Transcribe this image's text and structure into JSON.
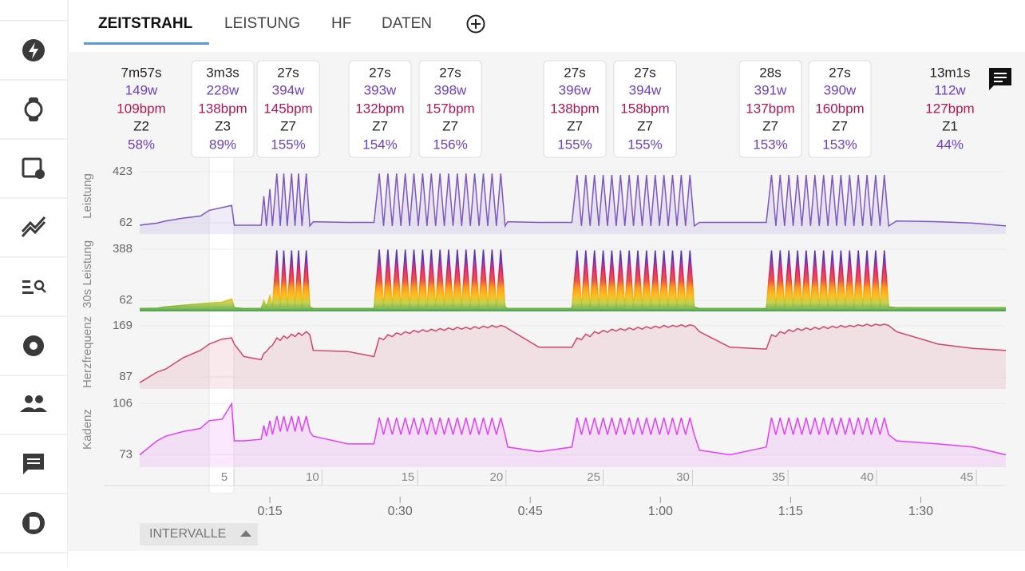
{
  "tabs": [
    "ZEITSTRAHL",
    "LEISTUNG",
    "HF",
    "DATEN"
  ],
  "intervals": [
    {
      "duration": "7m57s",
      "power": "149w",
      "hr": "109bpm",
      "zone": "Z2",
      "percent": "58%"
    },
    {
      "duration": "3m3s",
      "power": "228w",
      "hr": "138bpm",
      "zone": "Z3",
      "percent": "89%"
    },
    {
      "duration": "27s",
      "power": "394w",
      "hr": "145bpm",
      "zone": "Z7",
      "percent": "155%"
    },
    {
      "duration": "27s",
      "power": "393w",
      "hr": "132bpm",
      "zone": "Z7",
      "percent": "154%"
    },
    {
      "duration": "27s",
      "power": "398w",
      "hr": "157bpm",
      "zone": "Z7",
      "percent": "156%"
    },
    {
      "duration": "27s",
      "power": "396w",
      "hr": "138bpm",
      "zone": "Z7",
      "percent": "155%"
    },
    {
      "duration": "27s",
      "power": "394w",
      "hr": "158bpm",
      "zone": "Z7",
      "percent": "155%"
    },
    {
      "duration": "28s",
      "power": "391w",
      "hr": "137bpm",
      "zone": "Z7",
      "percent": "153%"
    },
    {
      "duration": "27s",
      "power": "390w",
      "hr": "160bpm",
      "zone": "Z7",
      "percent": "153%"
    },
    {
      "duration": "13m1s",
      "power": "112w",
      "hr": "127bpm",
      "zone": "Z1",
      "percent": "44%"
    }
  ],
  "chart": {
    "type": "line",
    "xlim": [
      0,
      99.8
    ],
    "xticks": [
      {
        "value": 15,
        "label": "0:15"
      },
      {
        "value": 30,
        "label": "0:30"
      },
      {
        "value": 45,
        "label": "0:45"
      },
      {
        "value": 60,
        "label": "1:00"
      },
      {
        "value": 75,
        "label": "1:15"
      },
      {
        "value": 90,
        "label": "1:30"
      }
    ],
    "interval_numbers": [
      {
        "value": 9.75,
        "label": "5"
      },
      {
        "value": 19.9,
        "label": "10"
      },
      {
        "value": 30.9,
        "label": "15"
      },
      {
        "value": 41.1,
        "label": "20"
      },
      {
        "value": 52.3,
        "label": "25"
      },
      {
        "value": 62.6,
        "label": "30"
      },
      {
        "value": 73.6,
        "label": "35"
      },
      {
        "value": 83.8,
        "label": "40"
      },
      {
        "value": 95.3,
        "label": "45"
      }
    ],
    "x": [
      0,
      2,
      3,
      5,
      7,
      8,
      9.5,
      10.6,
      10.9,
      12,
      14,
      14.3,
      14.6,
      15.0,
      15.3,
      15.8,
      16.2,
      16.6,
      17.0,
      17.5,
      17.9,
      18.3,
      18.7,
      19.2,
      19.6,
      20,
      24,
      27,
      27.6,
      28.1,
      28.6,
      29.1,
      29.6,
      30.1,
      30.6,
      31.1,
      31.6,
      32.1,
      32.6,
      33.1,
      33.6,
      34.1,
      34.6,
      35.1,
      35.6,
      36.1,
      36.6,
      37.1,
      37.6,
      38.1,
      38.6,
      39.1,
      39.6,
      40.1,
      40.6,
      41.1,
      41.6,
      42.1,
      42.4,
      46,
      49.8,
      50.4,
      50.9,
      51.4,
      51.9,
      52.4,
      52.9,
      53.4,
      53.9,
      54.4,
      54.9,
      55.4,
      55.9,
      56.4,
      56.9,
      57.4,
      57.9,
      58.4,
      58.9,
      59.4,
      59.9,
      60.4,
      60.9,
      61.4,
      61.9,
      62.4,
      62.9,
      63.4,
      63.9,
      64.5,
      68,
      72.2,
      72.8,
      73.3,
      73.8,
      74.3,
      74.8,
      75.3,
      75.8,
      76.3,
      76.8,
      77.3,
      77.8,
      78.3,
      78.8,
      79.3,
      79.8,
      80.3,
      80.8,
      81.3,
      81.8,
      82.3,
      82.8,
      83.3,
      83.8,
      84.3,
      84.8,
      85.3,
      85.8,
      86.3,
      87.2,
      92,
      96,
      99.8
    ],
    "panels": [
      {
        "label": "Leistung",
        "color": "#7e57c2",
        "ylim": [
          -17,
          519
        ],
        "yticks": [
          62,
          423
        ],
        "values": [
          45,
          60,
          75,
          95,
          110,
          150,
          170,
          185,
          45,
          45,
          45,
          250,
          40,
          300,
          40,
          410,
          40,
          410,
          40,
          410,
          40,
          410,
          40,
          410,
          40,
          70,
          65,
          65,
          410,
          40,
          410,
          40,
          410,
          40,
          410,
          40,
          410,
          40,
          410,
          40,
          410,
          40,
          410,
          40,
          410,
          40,
          410,
          40,
          410,
          40,
          410,
          40,
          410,
          40,
          410,
          40,
          410,
          40,
          70,
          65,
          65,
          400,
          40,
          400,
          40,
          400,
          40,
          400,
          40,
          400,
          40,
          400,
          40,
          400,
          40,
          400,
          40,
          400,
          40,
          400,
          40,
          400,
          40,
          400,
          40,
          400,
          40,
          400,
          40,
          65,
          65,
          65,
          400,
          40,
          400,
          40,
          400,
          40,
          400,
          40,
          400,
          40,
          400,
          40,
          400,
          40,
          400,
          40,
          400,
          40,
          400,
          40,
          400,
          40,
          400,
          40,
          400,
          40,
          400,
          40,
          75,
          70,
          60,
          40
        ]
      },
      {
        "label": "30s Leistung",
        "color": "#43a047",
        "ylim": [
          -9,
          464
        ],
        "yticks": [
          62,
          388
        ],
        "values": [
          10,
          12,
          20,
          30,
          40,
          45,
          50,
          70,
          15,
          10,
          10,
          60,
          20,
          90,
          20,
          380,
          20,
          380,
          20,
          380,
          20,
          380,
          20,
          380,
          20,
          10,
          10,
          10,
          385,
          20,
          385,
          20,
          385,
          20,
          385,
          20,
          385,
          20,
          385,
          20,
          385,
          20,
          385,
          20,
          385,
          20,
          385,
          20,
          385,
          20,
          385,
          20,
          385,
          20,
          385,
          20,
          385,
          20,
          10,
          10,
          10,
          380,
          20,
          380,
          20,
          380,
          20,
          380,
          20,
          380,
          20,
          380,
          20,
          380,
          20,
          380,
          20,
          380,
          20,
          380,
          20,
          380,
          20,
          380,
          20,
          380,
          20,
          380,
          20,
          10,
          10,
          10,
          380,
          20,
          380,
          20,
          380,
          20,
          380,
          20,
          380,
          20,
          380,
          20,
          380,
          20,
          380,
          20,
          380,
          20,
          380,
          20,
          380,
          20,
          380,
          20,
          380,
          20,
          380,
          20,
          15,
          15,
          15,
          15
        ]
      },
      {
        "label": "Herzfrequenz",
        "color": "#d0466a",
        "ylim": [
          68,
          186
        ],
        "yticks": [
          87,
          169
        ],
        "values": [
          78,
          95,
          100,
          118,
          130,
          140,
          148,
          150,
          140,
          120,
          115,
          125,
          128,
          135,
          138,
          150,
          146,
          153,
          149,
          156,
          152,
          158,
          154,
          160,
          155,
          130,
          128,
          120,
          150,
          147,
          155,
          152,
          158,
          155,
          160,
          157,
          162,
          159,
          163,
          160,
          164,
          161,
          165,
          162,
          166,
          163,
          167,
          164,
          167,
          164,
          168,
          165,
          169,
          166,
          170,
          167,
          170,
          168,
          165,
          135,
          135,
          150,
          147,
          156,
          152,
          160,
          157,
          162,
          159,
          164,
          161,
          165,
          162,
          166,
          163,
          167,
          164,
          168,
          165,
          169,
          166,
          170,
          167,
          170,
          168,
          171,
          168,
          171,
          169,
          160,
          135,
          132,
          155,
          152,
          160,
          157,
          163,
          160,
          165,
          162,
          166,
          163,
          167,
          164,
          168,
          165,
          169,
          166,
          170,
          167,
          170,
          168,
          171,
          169,
          172,
          169,
          172,
          170,
          172,
          170,
          160,
          140,
          133,
          130
        ]
      },
      {
        "label": "Kadenz",
        "color": "#e040fb",
        "ylim": [
          65,
          114
        ],
        "yticks": [
          73,
          106
        ],
        "values": [
          73,
          82,
          85,
          88,
          90,
          95,
          96,
          106,
          82,
          82,
          83,
          92,
          85,
          95,
          86,
          98,
          88,
          98,
          88,
          98,
          88,
          98,
          88,
          98,
          88,
          85,
          80,
          80,
          97,
          86,
          97,
          86,
          97,
          86,
          97,
          86,
          97,
          86,
          97,
          86,
          97,
          86,
          97,
          86,
          97,
          86,
          97,
          86,
          97,
          86,
          97,
          86,
          97,
          86,
          97,
          86,
          97,
          86,
          78,
          75,
          78,
          97,
          86,
          97,
          86,
          97,
          86,
          97,
          86,
          97,
          86,
          97,
          86,
          97,
          86,
          97,
          86,
          97,
          86,
          97,
          86,
          97,
          86,
          97,
          86,
          97,
          86,
          97,
          86,
          76,
          73,
          78,
          97,
          86,
          97,
          86,
          97,
          86,
          97,
          86,
          97,
          86,
          97,
          86,
          97,
          86,
          97,
          86,
          97,
          86,
          97,
          86,
          97,
          86,
          97,
          86,
          97,
          86,
          97,
          86,
          82,
          80,
          78,
          73
        ]
      }
    ]
  },
  "button": "INTERVALLE"
}
